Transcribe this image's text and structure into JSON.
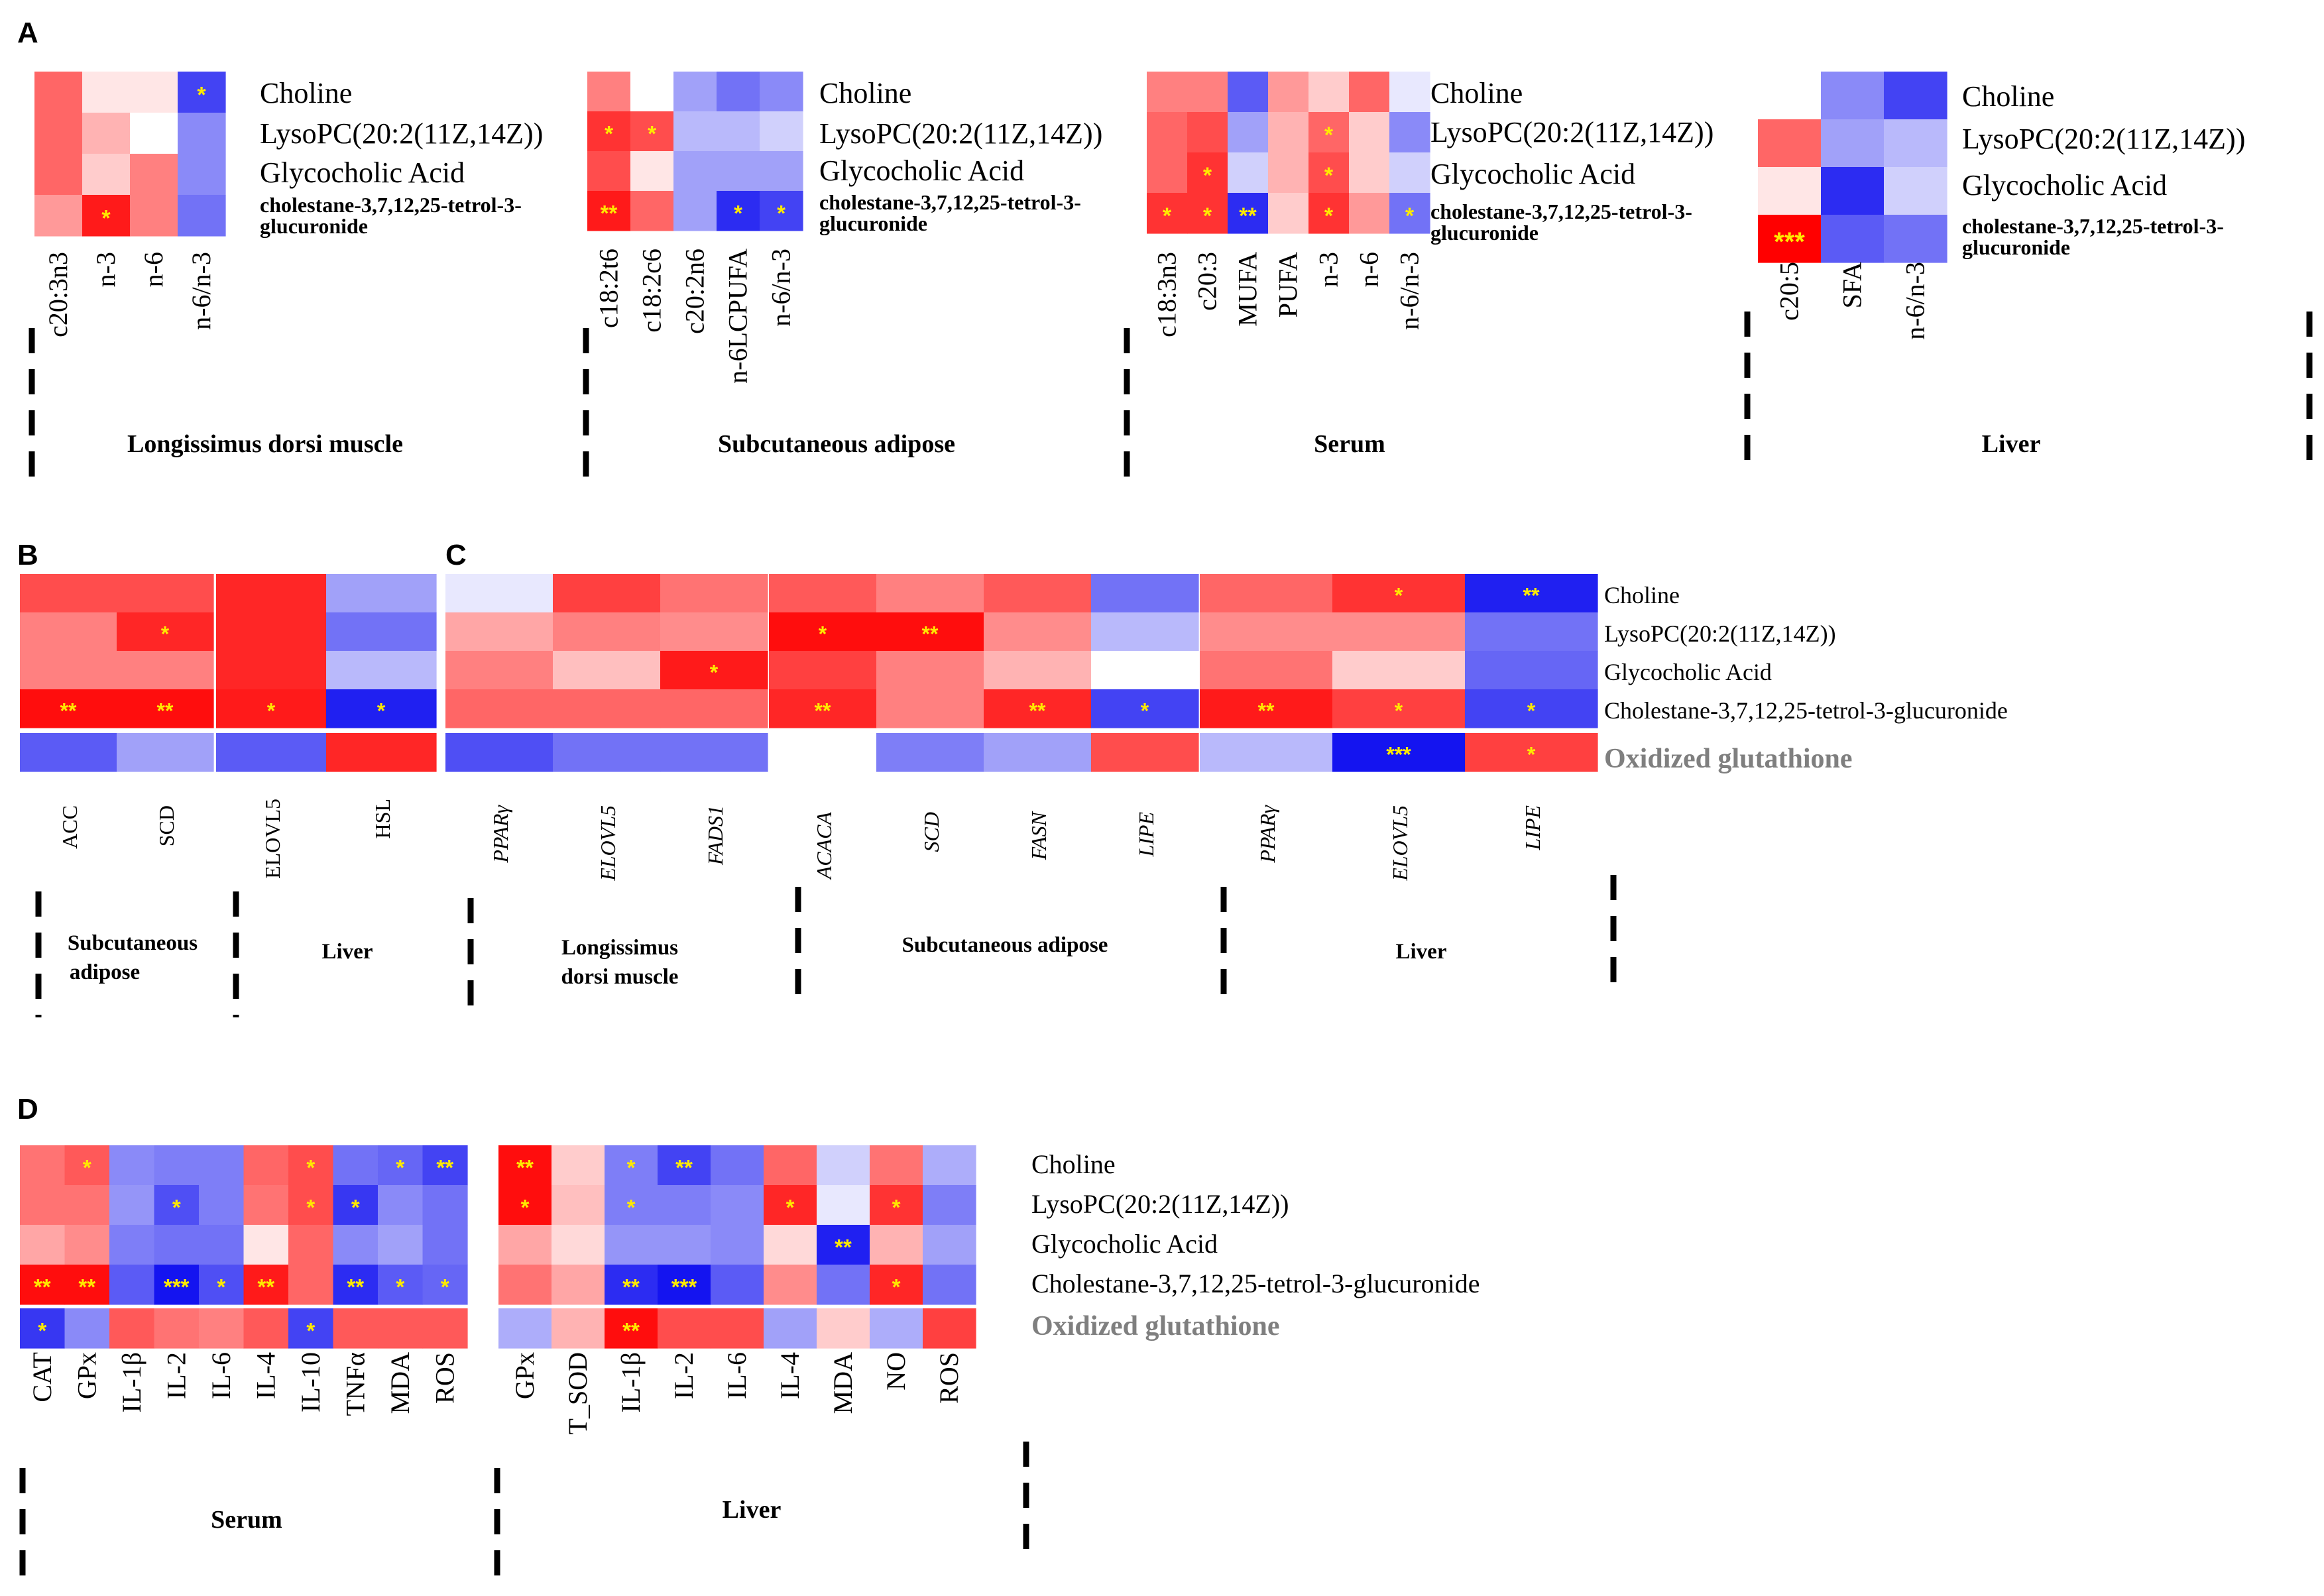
{
  "colors": {
    "negative": "#1414f0",
    "neutral": "#ffffff",
    "positive": "#ff0000",
    "star": "#ffea00",
    "oxidized_label": "#7f7f7f"
  },
  "chart_data": [
    {
      "id": "A1",
      "panel": "A",
      "type": "heatmap",
      "tissue": "Longissimus dorsi muscle",
      "rows": [
        "Choline",
        "LysoPC(20:2(11Z,14Z))",
        "Glycocholic Acid",
        "cholestane-3,7,12,25-tetrol-3-glucuronide"
      ],
      "columns": [
        "c20:3n3",
        "n-3",
        "n-6",
        "n-6/n-3"
      ],
      "values": [
        [
          0.6,
          0.1,
          0.1,
          -0.8
        ],
        [
          0.6,
          0.3,
          0.0,
          -0.5
        ],
        [
          0.6,
          0.2,
          0.5,
          -0.5
        ],
        [
          0.4,
          0.9,
          0.5,
          -0.6
        ]
      ],
      "stars": [
        [
          "",
          "",
          "",
          "*"
        ],
        [
          "",
          "",
          "",
          ""
        ],
        [
          "",
          "",
          "",
          ""
        ],
        [
          "",
          "*",
          "",
          ""
        ]
      ]
    },
    {
      "id": "A2",
      "panel": "A",
      "type": "heatmap",
      "tissue": "Subcutaneous adipose",
      "rows": [
        "Choline",
        "LysoPC(20:2(11Z,14Z))",
        "Glycocholic Acid",
        "cholestane-3,7,12,25-tetrol-3-glucuronide"
      ],
      "columns": [
        "c18:2t6",
        "c18:2c6",
        "c20:2n6",
        "n-6LCPUFA",
        "n-6/n-3"
      ],
      "values": [
        [
          0.5,
          0.0,
          -0.4,
          -0.6,
          -0.5
        ],
        [
          0.8,
          0.7,
          -0.3,
          -0.3,
          -0.2
        ],
        [
          0.7,
          0.1,
          -0.4,
          -0.4,
          -0.4
        ],
        [
          0.9,
          0.6,
          -0.4,
          -0.9,
          -0.8
        ]
      ],
      "stars": [
        [
          "",
          "",
          "",
          "",
          ""
        ],
        [
          "*",
          "*",
          "",
          "",
          ""
        ],
        [
          "",
          "",
          "",
          "",
          ""
        ],
        [
          "**",
          "",
          "",
          "*",
          "*"
        ]
      ]
    },
    {
      "id": "A3",
      "panel": "A",
      "type": "heatmap",
      "tissue": "Serum",
      "rows": [
        "Choline",
        "LysoPC(20:2(11Z,14Z))",
        "Glycocholic Acid",
        "cholestane-3,7,12,25-tetrol-3-glucuronide"
      ],
      "columns": [
        "c18:3n3",
        "c20:3",
        "MUFA",
        "PUFA",
        "n-3",
        "n-6",
        "n-6/n-3"
      ],
      "values": [
        [
          0.5,
          0.5,
          -0.7,
          0.4,
          0.2,
          0.6,
          -0.1
        ],
        [
          0.6,
          0.7,
          -0.4,
          0.3,
          0.6,
          0.2,
          -0.5
        ],
        [
          0.6,
          0.8,
          -0.2,
          0.3,
          0.7,
          0.2,
          -0.2
        ],
        [
          0.8,
          0.8,
          -0.9,
          0.2,
          0.8,
          0.4,
          -0.6
        ]
      ],
      "stars": [
        [
          "",
          "",
          "",
          "",
          "",
          "",
          ""
        ],
        [
          "",
          "",
          "",
          "",
          "*",
          "",
          ""
        ],
        [
          "",
          "*",
          "",
          "",
          "*",
          "",
          ""
        ],
        [
          "*",
          "*",
          "**",
          "",
          "*",
          "",
          "*"
        ]
      ]
    },
    {
      "id": "A4",
      "panel": "A",
      "type": "heatmap",
      "tissue": "Liver",
      "rows": [
        "Choline",
        "LysoPC(20:2(11Z,14Z))",
        "Glycocholic Acid",
        "cholestane-3,7,12,25-tetrol-3-glucuronide"
      ],
      "columns": [
        "c20:5",
        "SFA",
        "n-6/n-3"
      ],
      "values": [
        [
          0.0,
          -0.5,
          -0.8
        ],
        [
          0.6,
          -0.4,
          -0.3
        ],
        [
          0.1,
          -0.9,
          -0.2
        ],
        [
          1.0,
          -0.7,
          -0.6
        ]
      ],
      "stars": [
        [
          "",
          "",
          ""
        ],
        [
          "",
          "",
          ""
        ],
        [
          "",
          "",
          ""
        ],
        [
          "***",
          "",
          ""
        ]
      ]
    },
    {
      "id": "B1",
      "panel": "B",
      "type": "heatmap",
      "tissue": "Subcutaneous adipose",
      "rows": [
        "Choline",
        "LysoPC(20:2(11Z,14Z))",
        "Glycocholic Acid",
        "Cholestane-3,7,12,25-tetrol-3-glucuronide",
        "Oxidized glutathione"
      ],
      "columns": [
        "ACC",
        "SCD"
      ],
      "values": [
        [
          0.7,
          0.7
        ],
        [
          0.5,
          0.85
        ],
        [
          0.5,
          0.5
        ],
        [
          0.95,
          0.95
        ],
        [
          -0.7,
          -0.4
        ]
      ],
      "stars": [
        [
          "",
          ""
        ],
        [
          "",
          "*"
        ],
        [
          "",
          ""
        ],
        [
          "**",
          "**"
        ],
        [
          "",
          ""
        ]
      ]
    },
    {
      "id": "B2",
      "panel": "B",
      "type": "heatmap",
      "tissue": "Liver",
      "rows": [
        "Choline",
        "LysoPC(20:2(11Z,14Z))",
        "Glycocholic Acid",
        "Cholestane-3,7,12,25-tetrol-3-glucuronide",
        "Oxidized glutathione"
      ],
      "columns": [
        "ELOVL5",
        "HSL"
      ],
      "values": [
        [
          0.85,
          -0.4
        ],
        [
          0.85,
          -0.6
        ],
        [
          0.85,
          -0.3
        ],
        [
          0.9,
          -0.95
        ],
        [
          -0.7,
          0.85
        ]
      ],
      "stars": [
        [
          "",
          ""
        ],
        [
          "",
          ""
        ],
        [
          "",
          ""
        ],
        [
          "*",
          "*"
        ],
        [
          "",
          ""
        ]
      ]
    },
    {
      "id": "C1",
      "panel": "C",
      "type": "heatmap",
      "tissue": "Longissimus dorsi muscle",
      "rows": [
        "Choline",
        "LysoPC(20:2(11Z,14Z))",
        "Glycocholic Acid",
        "Cholestane-3,7,12,25-tetrol-3-glucuronide",
        "Oxidized glutathione"
      ],
      "columns": [
        "PPARγ",
        "ELOVL5",
        "FADS1"
      ],
      "values": [
        [
          -0.1,
          0.75,
          0.55
        ],
        [
          0.35,
          0.5,
          0.45
        ],
        [
          0.5,
          0.25,
          0.9
        ],
        [
          0.6,
          0.6,
          0.6
        ],
        [
          -0.75,
          -0.6,
          -0.6
        ]
      ],
      "stars": [
        [
          "",
          "",
          ""
        ],
        [
          "",
          "",
          ""
        ],
        [
          "",
          "",
          "*"
        ],
        [
          "",
          "",
          ""
        ],
        [
          "",
          "",
          ""
        ]
      ]
    },
    {
      "id": "C2",
      "panel": "C",
      "type": "heatmap",
      "tissue": "Subcutaneous adipose",
      "rows": [
        "Choline",
        "LysoPC(20:2(11Z,14Z))",
        "Glycocholic Acid",
        "Cholestane-3,7,12,25-tetrol-3-glucuronide",
        "Oxidized glutathione"
      ],
      "columns": [
        "ACACA",
        "SCD",
        "FASN",
        "LIPE"
      ],
      "values": [
        [
          0.65,
          0.5,
          0.65,
          -0.6
        ],
        [
          0.95,
          0.95,
          0.45,
          -0.3
        ],
        [
          0.75,
          0.5,
          0.3,
          0.0
        ],
        [
          0.85,
          0.5,
          0.85,
          -0.8
        ],
        [
          0.0,
          -0.55,
          -0.4,
          0.7
        ]
      ],
      "stars": [
        [
          "",
          "",
          "",
          ""
        ],
        [
          "*",
          "**",
          "",
          ""
        ],
        [
          "",
          "",
          "",
          ""
        ],
        [
          "**",
          "",
          "**",
          "*"
        ],
        [
          "",
          "",
          "",
          ""
        ]
      ]
    },
    {
      "id": "C3",
      "panel": "C",
      "type": "heatmap",
      "tissue": "Liver",
      "rows": [
        "Choline",
        "LysoPC(20:2(11Z,14Z))",
        "Glycocholic Acid",
        "Cholestane-3,7,12,25-tetrol-3-glucuronide",
        "Oxidized glutathione"
      ],
      "columns": [
        "PPARγ",
        "ELOVL5",
        "LIPE"
      ],
      "values": [
        [
          0.6,
          0.8,
          -0.95
        ],
        [
          0.45,
          0.45,
          -0.6
        ],
        [
          0.55,
          0.2,
          -0.65
        ],
        [
          0.9,
          0.75,
          -0.8
        ],
        [
          -0.3,
          -1.0,
          0.75
        ]
      ],
      "stars": [
        [
          "",
          "*",
          "**"
        ],
        [
          "",
          "",
          ""
        ],
        [
          "",
          "",
          ""
        ],
        [
          "**",
          "*",
          "*"
        ],
        [
          "",
          "***",
          "*"
        ]
      ]
    },
    {
      "id": "D1",
      "panel": "D",
      "type": "heatmap",
      "tissue": "Serum",
      "rows": [
        "Choline",
        "LysoPC(20:2(11Z,14Z))",
        "Glycocholic Acid",
        "Cholestane-3,7,12,25-tetrol-3-glucuronide",
        "Oxidized glutathione"
      ],
      "columns": [
        "CAT",
        "GPx",
        "IL-1β",
        "IL-2",
        "IL-6",
        "IL-4",
        "IL-10",
        "TNFα",
        "MDA",
        "ROS"
      ],
      "values": [
        [
          0.55,
          0.65,
          -0.5,
          -0.55,
          -0.55,
          0.6,
          0.7,
          -0.6,
          -0.65,
          -0.8
        ],
        [
          0.55,
          0.55,
          -0.45,
          -0.75,
          -0.55,
          0.55,
          0.7,
          -0.85,
          -0.5,
          -0.6
        ],
        [
          0.35,
          0.45,
          -0.55,
          -0.6,
          -0.6,
          0.1,
          0.6,
          -0.5,
          -0.4,
          -0.6
        ],
        [
          0.95,
          0.95,
          -0.7,
          -1.0,
          -0.75,
          0.9,
          0.6,
          -0.9,
          -0.7,
          -0.65
        ],
        [
          -0.85,
          -0.5,
          0.65,
          0.55,
          0.5,
          0.65,
          -0.8,
          0.65,
          0.65,
          0.65
        ]
      ],
      "stars": [
        [
          "",
          "*",
          "",
          "",
          "",
          "",
          "*",
          "",
          "*",
          "**"
        ],
        [
          "",
          "",
          "",
          "*",
          "",
          "",
          "*",
          "*",
          "",
          ""
        ],
        [
          "",
          "",
          "",
          "",
          "",
          "",
          "",
          "",
          "",
          ""
        ],
        [
          "**",
          "**",
          "",
          "***",
          "*",
          "**",
          "",
          "**",
          "*",
          "*"
        ],
        [
          "*",
          "",
          "",
          "",
          "",
          "",
          "*",
          "",
          "",
          ""
        ]
      ]
    },
    {
      "id": "D2",
      "panel": "D",
      "type": "heatmap",
      "tissue": "Liver",
      "rows": [
        "Choline",
        "LysoPC(20:2(11Z,14Z))",
        "Glycocholic Acid",
        "Cholestane-3,7,12,25-tetrol-3-glucuronide",
        "Oxidized glutathione"
      ],
      "columns": [
        "GPx",
        "T_SOD",
        "IL-1β",
        "IL-2",
        "IL-6",
        "IL-4",
        "MDA",
        "NO",
        "ROS"
      ],
      "values": [
        [
          0.95,
          0.2,
          -0.55,
          -0.8,
          -0.6,
          0.6,
          -0.2,
          0.55,
          -0.35
        ],
        [
          0.95,
          0.25,
          -0.55,
          -0.55,
          -0.5,
          0.85,
          -0.1,
          0.8,
          -0.55
        ],
        [
          0.35,
          0.15,
          -0.45,
          -0.45,
          -0.5,
          0.15,
          -0.95,
          0.3,
          -0.4
        ],
        [
          0.55,
          0.35,
          -0.9,
          -1.0,
          -0.7,
          0.45,
          -0.6,
          0.85,
          -0.6
        ],
        [
          -0.35,
          0.3,
          0.95,
          0.7,
          0.7,
          -0.4,
          0.2,
          -0.35,
          0.75
        ]
      ],
      "stars": [
        [
          "**",
          "",
          "*",
          "**",
          "",
          "",
          "",
          "",
          ""
        ],
        [
          "*",
          "",
          "*",
          "",
          "",
          "*",
          "",
          "*",
          ""
        ],
        [
          "",
          "",
          "",
          "",
          "",
          "",
          "**",
          "",
          ""
        ],
        [
          "",
          "",
          "**",
          "***",
          "",
          "",
          "",
          "*",
          ""
        ],
        [
          "",
          "",
          "**",
          "",
          "",
          "",
          "",
          "",
          ""
        ]
      ]
    }
  ],
  "panels": {
    "A": {
      "label": "A",
      "blocks": [
        {
          "rows": [
            "Choline",
            "LysoPC(20:2(11Z,14Z))",
            "Glycocholic Acid"
          ],
          "last_row": [
            "cholestane-3,7,12,25-tetrol-3-",
            "glucuronide"
          ]
        },
        {
          "rows": [
            "Choline",
            "LysoPC(20:2(11Z,14Z))",
            "Glycocholic Acid"
          ],
          "last_row": [
            "cholestane-3,7,12,25-tetrol-3-",
            "glucuronide"
          ]
        },
        {
          "rows": [
            "Choline",
            "LysoPC(20:2(11Z,14Z))",
            "Glycocholic Acid"
          ],
          "last_row": [
            "cholestane-3,7,12,25-tetrol-3-",
            "glucuronide"
          ]
        },
        {
          "rows": [
            "Choline",
            "LysoPC(20:2(11Z,14Z))",
            "Glycocholic Acid"
          ],
          "last_row": [
            "cholestane-3,7,12,25-tetrol-3-",
            "glucuronide"
          ]
        }
      ],
      "tissues": [
        "Longissimus dorsi muscle",
        "Subcutaneous adipose",
        "Serum",
        "Liver"
      ]
    },
    "B": {
      "label": "B",
      "tissues": [
        [
          "Subcutaneous",
          "adipose"
        ],
        [
          "Liver"
        ]
      ]
    },
    "C": {
      "label": "C",
      "rows": [
        "Choline",
        "LysoPC(20:2(11Z,14Z))",
        "Glycocholic Acid",
        "Cholestane-3,7,12,25-tetrol-3-glucuronide",
        "Oxidized glutathione"
      ],
      "tissues": [
        [
          "Longissimus",
          "dorsi muscle"
        ],
        [
          "Subcutaneous adipose"
        ],
        [
          "Liver"
        ]
      ]
    },
    "D": {
      "label": "D",
      "rows": [
        "Choline",
        "LysoPC(20:2(11Z,14Z))",
        "Glycocholic Acid",
        "Cholestane-3,7,12,25-tetrol-3-glucuronide",
        "Oxidized glutathione"
      ],
      "tissues": [
        "Serum",
        "Liver"
      ]
    }
  }
}
